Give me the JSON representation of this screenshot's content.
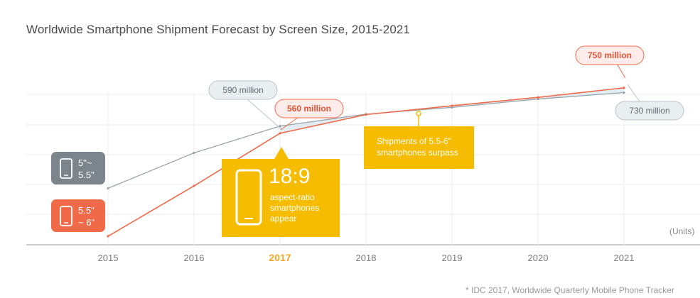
{
  "title": "Worldwide Smartphone Shipment Forecast by Screen Size, 2015-2021",
  "units": "(Units)",
  "source": "* IDC 2017, Worldwide Quarterly Mobile Phone Tracker",
  "colors": {
    "series_a": "#9aa5ab",
    "series_b": "#f06a4a",
    "highlight": "#f5bc00",
    "fill": "#d8e7f0"
  },
  "legend": [
    {
      "name": "5\"~ 5.5\"",
      "line1": "5\"~",
      "line2": "5.5\"",
      "color": "#7b858b",
      "icon": "smartphone-icon"
    },
    {
      "name": "5.5\" ~ 6\"",
      "line1": "5.5\"",
      "line2": "~ 6\"",
      "color": "#f06a4a",
      "icon": "smartphone-icon"
    }
  ],
  "annotations": {
    "a_2017": "590 million",
    "b_2017": "560 million",
    "b_2021": "750 million",
    "a_2021": "730 million",
    "crossover": [
      "Shipments of 5.5-6\"",
      "smartphones surpass"
    ],
    "aspect_big": "18:9",
    "aspect_lines": [
      "aspect-ratio",
      "smartphones",
      "appear"
    ]
  },
  "chart_data": {
    "type": "line",
    "title": "Worldwide Smartphone Shipment Forecast by Screen Size, 2015-2021",
    "x": [
      "2015",
      "2016",
      "2017",
      "2018",
      "2019",
      "2020",
      "2021"
    ],
    "highlighted_x": "2017",
    "ylabel": "(Units)",
    "series": [
      {
        "name": "5\"~ 5.5\"",
        "values": [
          330,
          478,
          590,
          640,
          668,
          703,
          730
        ]
      },
      {
        "name": "5.5\" ~ 6\"",
        "values": [
          130,
          340,
          560,
          638,
          675,
          710,
          750
        ]
      }
    ],
    "ylim": [
      100,
      850
    ],
    "grid": true
  }
}
